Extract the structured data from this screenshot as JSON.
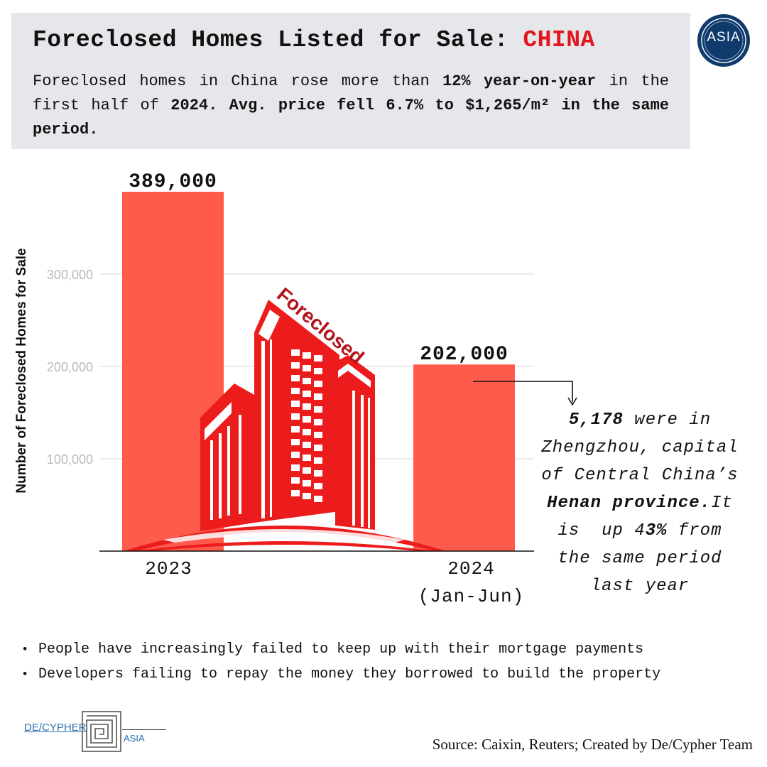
{
  "header": {
    "title_main": "Foreclosed Homes Listed for Sale: ",
    "title_accent": "CHINA",
    "subtitle": [
      {
        "text": "Foreclosed homes in China rose more than ",
        "bold": false
      },
      {
        "text": "12% year-on-year",
        "bold": true
      },
      {
        "text": " in the first half of ",
        "bold": false
      },
      {
        "text": "2024. Avg. price fell 6.7% to $1,265/m² in the same period.",
        "bold": true
      }
    ]
  },
  "logo": {
    "text": "ASIA"
  },
  "colors": {
    "bar": "#fe5b4c",
    "accent": "#e3161c",
    "building": "#ec1c1c",
    "header_bg": "#e6e7ea"
  },
  "illustration": {
    "label": "Foreclosed",
    "icon": "building-icon"
  },
  "chart_data": {
    "type": "bar",
    "categories": [
      "2023",
      "2024 (Jan-Jun)"
    ],
    "category_lines": [
      [
        "2023"
      ],
      [
        "2024",
        "(Jan-Jun)"
      ]
    ],
    "values": [
      389000,
      202000
    ],
    "value_labels": [
      "389,000",
      "202,000"
    ],
    "title": "Foreclosed Homes Listed for Sale: CHINA",
    "xlabel": "",
    "ylabel": "Number of Foreclosed Homes for Sale",
    "ylim": [
      0,
      389000
    ],
    "yticks": [
      100000,
      200000,
      300000
    ],
    "ytick_labels": [
      "100,000",
      "200,000",
      "300,000"
    ],
    "grid": true
  },
  "annotation": [
    [
      {
        "t": "5,178",
        "b": true
      },
      {
        "t": " were in",
        "b": false
      }
    ],
    [
      {
        "t": "Zhengzhou, capital",
        "b": false
      }
    ],
    [
      {
        "t": "of Central China’s",
        "b": false
      }
    ],
    [
      {
        "t": "Henan province.",
        "b": true
      },
      {
        "t": "It",
        "b": false
      }
    ],
    [
      {
        "t": "is  up 4",
        "b": false
      },
      {
        "t": "3%",
        "b": true
      },
      {
        "t": " from",
        "b": false
      }
    ],
    [
      {
        "t": "the same period",
        "b": false
      }
    ],
    [
      {
        "t": "last year",
        "b": false
      }
    ]
  ],
  "bullets": [
    "People have increasingly failed to keep up with their mortgage payments",
    "Developers failing to repay the money they borrowed to build the property"
  ],
  "brand": {
    "name": "DE/CYPHER",
    "sub": "ASIA"
  },
  "source": "Source: Caixin, Reuters; Created by De/Cypher Team"
}
